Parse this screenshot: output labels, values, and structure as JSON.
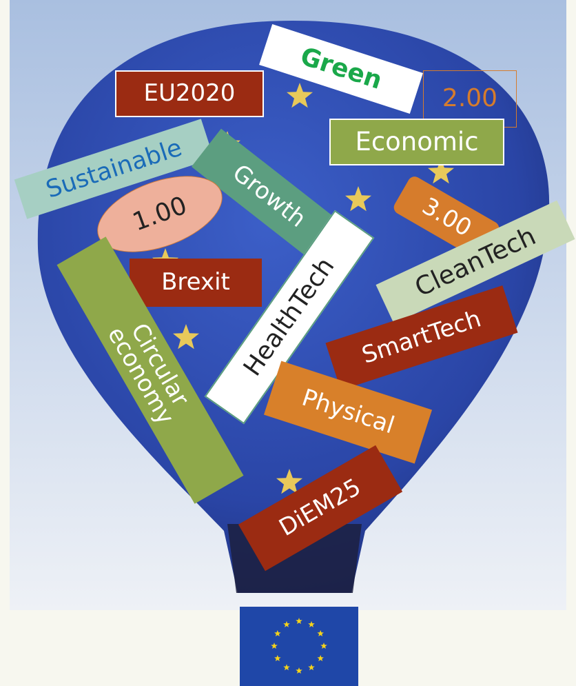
{
  "tags": [
    "Green",
    "EU2020",
    "2.00",
    "Economic",
    "Sustainable",
    "Growth",
    "1.00",
    "3.00",
    "CleanTech",
    "Brexit",
    "HealthTech",
    "Circular economy",
    "SmartTech",
    "Physical",
    "DiEM25"
  ]
}
